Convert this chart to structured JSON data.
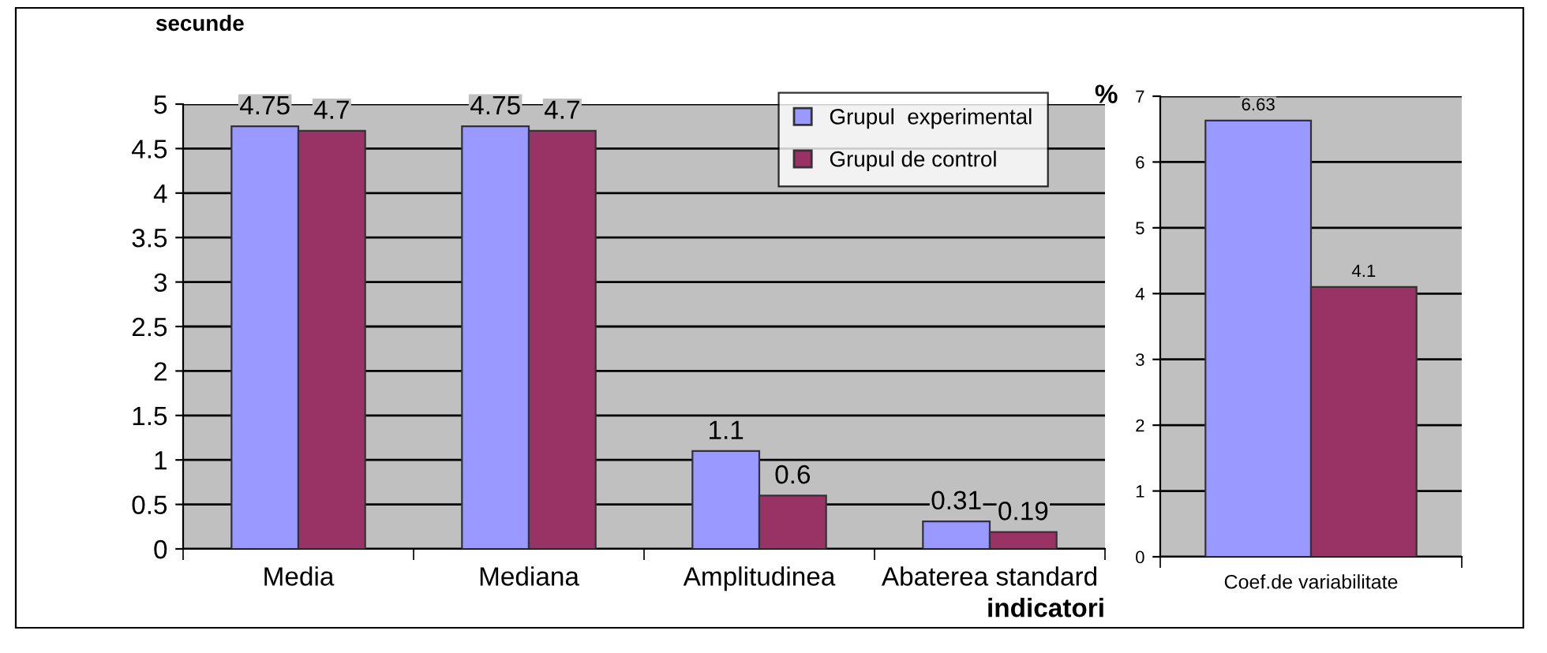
{
  "chart_data": [
    {
      "type": "bar",
      "ylabel": "secunde",
      "xlabel": "indicatori",
      "categories": [
        "Media",
        "Mediana",
        "Amplitudinea",
        "Abaterea standard"
      ],
      "series": [
        {
          "name": "Grupul  experimental",
          "color": "#9999ff",
          "values": [
            4.75,
            4.75,
            1.1,
            0.31
          ]
        },
        {
          "name": "Grupul de control",
          "color": "#993366",
          "values": [
            4.7,
            4.7,
            0.6,
            0.19
          ]
        }
      ],
      "ylim": [
        0,
        5
      ],
      "yticks": [
        0,
        0.5,
        1,
        1.5,
        2,
        2.5,
        3,
        3.5,
        4,
        4.5,
        5
      ],
      "grid": "y",
      "legend": "top right",
      "data_labels": true
    },
    {
      "type": "bar",
      "ylabel": "%",
      "categories": [
        "Coef.de variabilitate"
      ],
      "series": [
        {
          "color": "#9999ff",
          "values": [
            6.63
          ]
        },
        {
          "color": "#993366",
          "values": [
            4.1
          ]
        }
      ],
      "ylim": [
        0,
        7
      ],
      "yticks": [
        0,
        1,
        2,
        3,
        4,
        5,
        6,
        7
      ],
      "grid": "y",
      "data_labels": true
    }
  ]
}
